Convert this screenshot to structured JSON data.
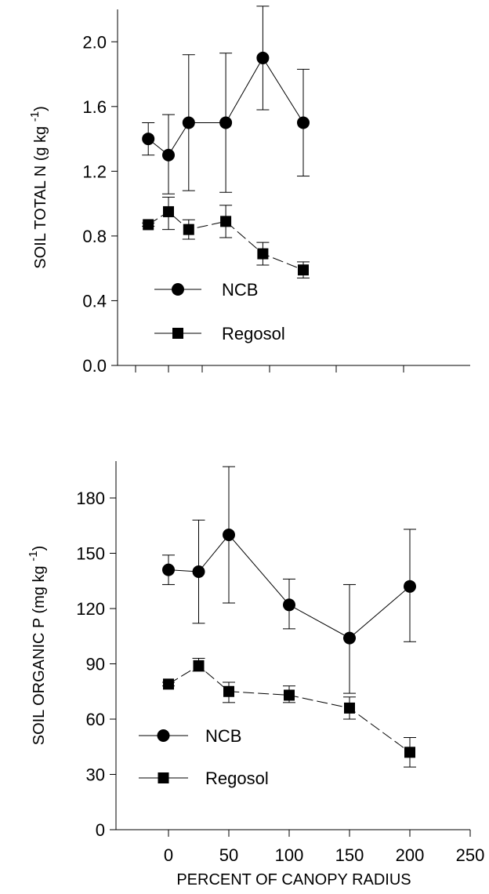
{
  "chart_data": [
    {
      "type": "line",
      "xlabel": "",
      "ylabel": "SOIL TOTAL N (g kg-1)",
      "ylabel_main": "SOIL TOTAL N (g kg",
      "ylabel_sup": "-1",
      "ylabel_close": ")",
      "ylim": [
        0,
        2.2
      ],
      "yticks": [
        "0.0",
        "0.4",
        "0.8",
        "1.2",
        "1.6",
        "2.0"
      ],
      "grid": false,
      "legend": "bottom-left",
      "series": [
        {
          "name": "NCB",
          "marker": "circle",
          "line": "solid",
          "x": [
            -30,
            0,
            30,
            85,
            140,
            200
          ],
          "y": [
            1.4,
            1.3,
            1.5,
            1.5,
            1.9,
            1.5
          ],
          "err_low": [
            1.3,
            1.06,
            1.08,
            1.07,
            1.58,
            1.17
          ],
          "err_high": [
            1.5,
            1.55,
            1.92,
            1.93,
            2.22,
            1.83
          ]
        },
        {
          "name": "Regosol",
          "marker": "square",
          "line": "dashed",
          "x": [
            -30,
            0,
            30,
            85,
            140,
            200
          ],
          "y": [
            0.87,
            0.95,
            0.84,
            0.89,
            0.69,
            0.59
          ],
          "err_low": [
            0.86,
            0.84,
            0.78,
            0.79,
            0.62,
            0.54
          ],
          "err_high": [
            0.88,
            1.04,
            0.9,
            0.99,
            0.76,
            0.64
          ]
        }
      ]
    },
    {
      "type": "line",
      "xlabel": "PERCENT OF CANOPY RADIUS",
      "ylabel": "SOIL ORGANIC P (mg kg-1)",
      "ylabel_main": "SOIL ORGANIC P (mg kg",
      "ylabel_sup": "-1",
      "ylabel_close": ")",
      "xlim": [
        -50,
        250
      ],
      "xticks": [
        "0",
        "50",
        "100",
        "150",
        "200",
        "250"
      ],
      "ylim": [
        0,
        200
      ],
      "yticks": [
        "0",
        "30",
        "60",
        "90",
        "120",
        "150",
        "180"
      ],
      "grid": false,
      "legend": "bottom-left",
      "series": [
        {
          "name": "NCB",
          "marker": "circle",
          "line": "solid",
          "x": [
            0,
            25,
            50,
            100,
            150,
            200
          ],
          "y": [
            141,
            140,
            160,
            122,
            104,
            132
          ],
          "err_low": [
            133,
            112,
            123,
            109,
            74,
            102
          ],
          "err_high": [
            149,
            168,
            197,
            136,
            133,
            163
          ]
        },
        {
          "name": "Regosol",
          "marker": "square",
          "line": "dashed",
          "x": [
            0,
            25,
            50,
            100,
            150,
            200
          ],
          "y": [
            79,
            89,
            75,
            73,
            66,
            42
          ],
          "err_low": [
            78,
            86,
            69,
            69,
            60,
            34
          ],
          "err_high": [
            80,
            93,
            80,
            78,
            72,
            50
          ]
        }
      ]
    }
  ]
}
